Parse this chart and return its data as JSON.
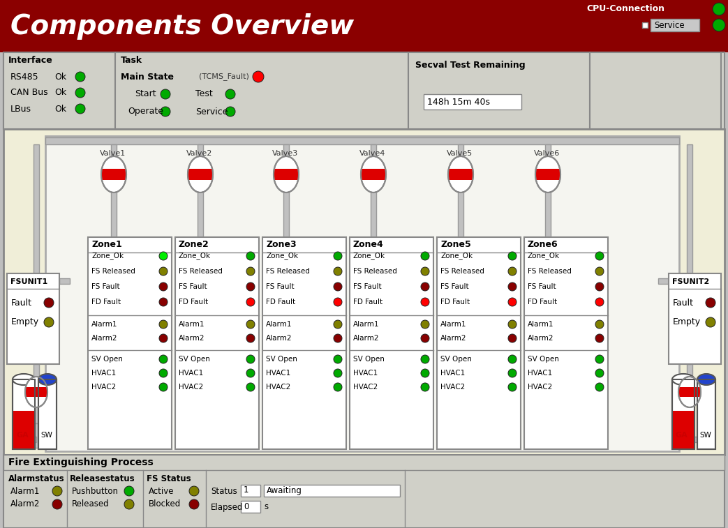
{
  "title": "Components Overview",
  "bg_header": "#8B0000",
  "bg_main": "#BEBEBE",
  "bg_panel_outer": "#F0EED8",
  "bg_panel_inner": "#F5F5F0",
  "text_title": "#FFFFFF",
  "cpu_connection": "CPU-Connection",
  "service_label": "Service",
  "interface_items": [
    [
      "RS485",
      "Ok"
    ],
    [
      "CAN Bus",
      "Ok"
    ],
    [
      "LBus",
      "Ok"
    ]
  ],
  "task_main_state": "Main State",
  "task_fault": "(TCMS_Fault)",
  "secval": "Secval Test Remaining",
  "secval_time": "148h 15m 40s",
  "valves": [
    "Valve1",
    "Valve2",
    "Valve3",
    "Valve4",
    "Valve5",
    "Valve6"
  ],
  "zones": [
    "Zone1",
    "Zone2",
    "Zone3",
    "Zone4",
    "Zone5",
    "Zone6"
  ],
  "zone_labels": [
    "Zone_Ok",
    "FS Released",
    "FS Fault",
    "FD Fault",
    "Alarm1",
    "Alarm2",
    "SV Open",
    "HVAC1",
    "HVAC2"
  ],
  "zone_colors_z1": [
    "bright_green",
    "olive",
    "dark_red",
    "dark_red",
    "olive",
    "dark_red",
    "green",
    "green",
    "green"
  ],
  "zone_colors_z2": [
    "green",
    "olive",
    "dark_red",
    "red",
    "olive",
    "dark_red",
    "green",
    "green",
    "green"
  ],
  "zone_colors_z3": [
    "green",
    "olive",
    "dark_red",
    "red",
    "olive",
    "dark_red",
    "green",
    "green",
    "green"
  ],
  "zone_colors_z4": [
    "green",
    "olive",
    "dark_red",
    "red",
    "olive",
    "dark_red",
    "green",
    "green",
    "green"
  ],
  "zone_colors_z5": [
    "green",
    "olive",
    "dark_red",
    "red",
    "olive",
    "dark_red",
    "green",
    "green",
    "green"
  ],
  "zone_colors_z6": [
    "green",
    "olive",
    "dark_red",
    "red",
    "olive",
    "dark_red",
    "green",
    "green",
    "green"
  ],
  "fsunit_items": [
    [
      "Fault",
      "dark_red"
    ],
    [
      "Empty",
      "olive"
    ]
  ],
  "fire_section": "Fire Extinguishing Process",
  "alarm_items": [
    [
      "Alarm1",
      "olive"
    ],
    [
      "Alarm2",
      "dark_red"
    ]
  ],
  "release_items": [
    [
      "Pushbutton",
      "green"
    ],
    [
      "Released",
      "olive"
    ]
  ],
  "fs_items": [
    [
      "Active",
      "olive"
    ],
    [
      "Blocked",
      "dark_red"
    ]
  ],
  "status_val": "1",
  "status_text": "Awaiting",
  "elapsed_val": "0"
}
